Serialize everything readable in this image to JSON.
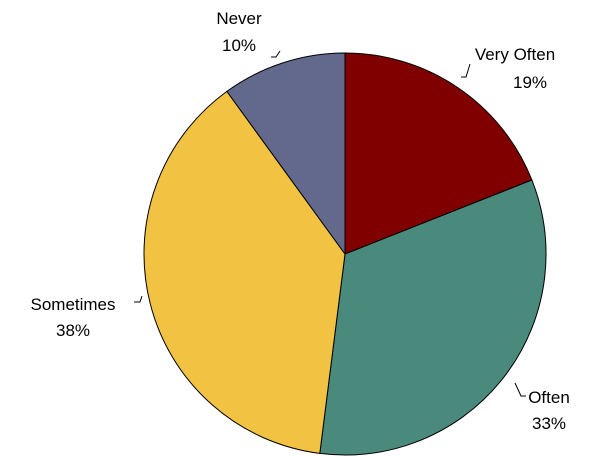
{
  "chart_data": {
    "type": "pie",
    "start_angle": "12 o'clock",
    "direction": "clockwise",
    "slices": [
      {
        "label": "Very Often",
        "value": 19,
        "value_label": "19%",
        "color": "#800000"
      },
      {
        "label": "Often",
        "value": 33,
        "value_label": "33%",
        "color": "#4a8a7d"
      },
      {
        "label": "Sometimes",
        "value": 38,
        "value_label": "38%",
        "color": "#f2c343"
      },
      {
        "label": "Never",
        "value": 10,
        "value_label": "10%",
        "color": "#62698d"
      }
    ]
  }
}
